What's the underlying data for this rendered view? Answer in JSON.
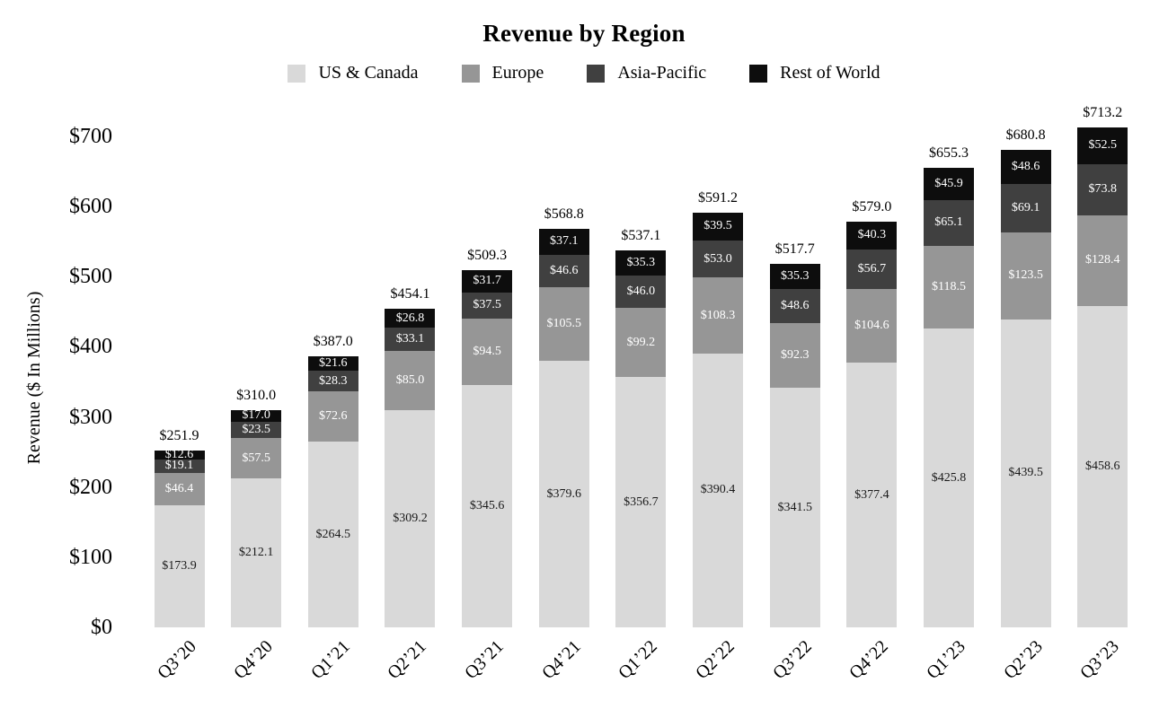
{
  "chart_data": {
    "type": "bar",
    "stacked": true,
    "title": "Revenue by Region",
    "ylabel": "Revenue ($ In Millions)",
    "value_prefix": "$",
    "ylim": [
      0,
      700
    ],
    "y_tick_step": 100,
    "y_tick_labels": [
      "$0",
      "$100",
      "$200",
      "$300",
      "$400",
      "$500",
      "$600",
      "$700"
    ],
    "grid": false,
    "legend_position": "top",
    "categories": [
      "Q3’20",
      "Q4’20",
      "Q1’21",
      "Q2’21",
      "Q3’21",
      "Q4’21",
      "Q1’22",
      "Q2’22",
      "Q3’22",
      "Q4’22",
      "Q1’23",
      "Q2’23",
      "Q3’23"
    ],
    "series": [
      {
        "name": "US & Canada",
        "color": "#d9d9d9",
        "label_color": "#1a1a1a",
        "values": [
          173.9,
          212.1,
          264.5,
          309.2,
          345.6,
          379.6,
          356.7,
          390.4,
          341.5,
          377.4,
          425.8,
          439.5,
          458.6
        ]
      },
      {
        "name": "Europe",
        "color": "#969696",
        "label_color": "#ffffff",
        "values": [
          46.4,
          57.5,
          72.6,
          85.0,
          94.5,
          105.5,
          99.2,
          108.3,
          92.3,
          104.6,
          118.5,
          123.5,
          128.4
        ]
      },
      {
        "name": "Asia-Pacific",
        "color": "#404040",
        "label_color": "#ffffff",
        "values": [
          19.1,
          23.5,
          28.3,
          33.1,
          37.5,
          46.6,
          46.0,
          53.0,
          48.6,
          56.7,
          65.1,
          69.1,
          73.8
        ]
      },
      {
        "name": "Rest of World",
        "color": "#0d0d0d",
        "label_color": "#ffffff",
        "values": [
          12.6,
          17.0,
          21.6,
          26.8,
          31.7,
          37.1,
          35.3,
          39.5,
          35.3,
          40.3,
          45.9,
          48.6,
          52.5
        ]
      }
    ],
    "totals": [
      251.9,
      310.0,
      387.0,
      454.1,
      509.3,
      568.8,
      537.1,
      591.2,
      517.7,
      579.0,
      655.3,
      680.8,
      713.2
    ]
  }
}
